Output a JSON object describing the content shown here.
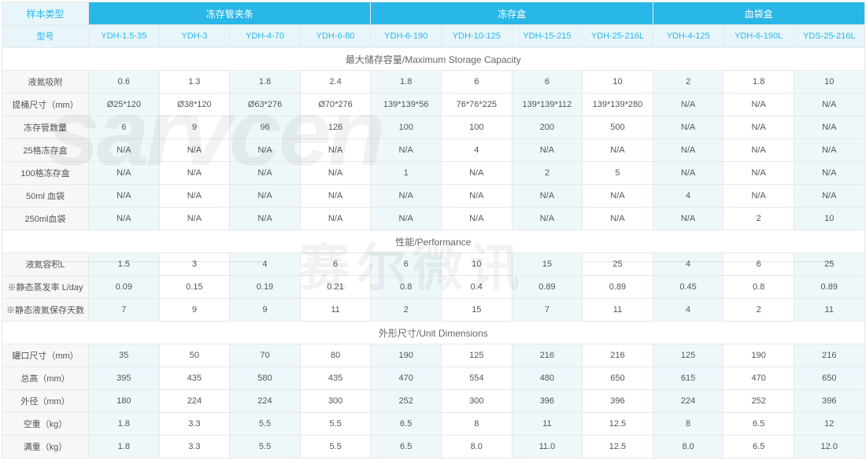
{
  "groups": [
    {
      "label": "样本类型",
      "span": 1
    },
    {
      "label": "冻存管夹条",
      "span": 4
    },
    {
      "label": "冻存盒",
      "span": 4
    },
    {
      "label": "血袋盒",
      "span": 3
    }
  ],
  "model_header_label": "型号",
  "models": [
    "YDH-1.5-35",
    "YDH-3",
    "YDH-4-70",
    "YDH-6-80",
    "YDH-6-190",
    "YDH-10-125",
    "YDH-15-215",
    "YDH-25-216L",
    "YDH-4-125",
    "YDH-6-190L",
    "YDS-25-216L"
  ],
  "shade_flags": [
    1,
    0,
    1,
    0,
    1,
    0,
    1,
    0,
    1,
    0,
    1
  ],
  "sections": [
    {
      "title": "最大储存容量/Maximum Storage Capacity",
      "rows": [
        {
          "label": "液氮吸附",
          "vals": [
            "0.6",
            "1.3",
            "1.8",
            "2.4",
            "1.8",
            "6",
            "6",
            "10",
            "2",
            "1.8",
            "10"
          ]
        },
        {
          "label": "提桶尺寸（mm）",
          "vals": [
            "Ø25*120",
            "Ø38*120",
            "Ø63*276",
            "Ø70*276",
            "139*139*56",
            "76*76*225",
            "139*139*112",
            "139*139*280",
            "N/A",
            "N/A",
            "N/A"
          ]
        },
        {
          "label": "冻存管数量",
          "vals": [
            "6",
            "9",
            "96",
            "126",
            "100",
            "100",
            "200",
            "500",
            "N/A",
            "N/A",
            "N/A"
          ]
        },
        {
          "label": "25格冻存盒",
          "vals": [
            "N/A",
            "N/A",
            "N/A",
            "N/A",
            "N/A",
            "4",
            "N/A",
            "N/A",
            "N/A",
            "N/A",
            "N/A"
          ]
        },
        {
          "label": "100格冻存盒",
          "vals": [
            "N/A",
            "N/A",
            "N/A",
            "N/A",
            "1",
            "N/A",
            "2",
            "5",
            "N/A",
            "N/A",
            "N/A"
          ]
        },
        {
          "label": "50ml 血袋",
          "vals": [
            "N/A",
            "N/A",
            "N/A",
            "N/A",
            "N/A",
            "N/A",
            "N/A",
            "N/A",
            "4",
            "N/A",
            "N/A"
          ]
        },
        {
          "label": "250ml血袋",
          "vals": [
            "N/A",
            "N/A",
            "N/A",
            "N/A",
            "N/A",
            "N/A",
            "N/A",
            "N/A",
            "N/A",
            "2",
            "10"
          ]
        }
      ]
    },
    {
      "title": "性能/Performance",
      "rows": [
        {
          "label": "液氮容积L",
          "vals": [
            "1.5",
            "3",
            "4",
            "6",
            "6",
            "10",
            "15",
            "25",
            "4",
            "6",
            "25"
          ]
        },
        {
          "label": "※静态蒸发率 L/day",
          "vals": [
            "0.09",
            "0.15",
            "0.19",
            "0.21",
            "0.8",
            "0.4",
            "0.89",
            "0.89",
            "0.45",
            "0.8",
            "0.89"
          ]
        },
        {
          "label": "※静态液氮保存天数",
          "vals": [
            "7",
            "9",
            "9",
            "11",
            "2",
            "15",
            "7",
            "11",
            "4",
            "2",
            "11"
          ]
        }
      ]
    },
    {
      "title": "外形尺寸/Unit Dimensions",
      "rows": [
        {
          "label": "罐口尺寸（mm）",
          "vals": [
            "35",
            "50",
            "70",
            "80",
            "190",
            "125",
            "216",
            "216",
            "125",
            "190",
            "216"
          ]
        },
        {
          "label": "总高（mm）",
          "vals": [
            "395",
            "435",
            "580",
            "435",
            "470",
            "554",
            "480",
            "650",
            "615",
            "470",
            "650"
          ]
        },
        {
          "label": "外径（mm）",
          "vals": [
            "180",
            "224",
            "224",
            "300",
            "252",
            "300",
            "396",
            "396",
            "224",
            "252",
            "396"
          ]
        },
        {
          "label": "空重（kg）",
          "vals": [
            "1.8",
            "3.3",
            "5.5",
            "5.5",
            "6.5",
            "8",
            "11",
            "12.5",
            "8",
            "6.5",
            "12"
          ]
        },
        {
          "label": "满重（kg）",
          "vals": [
            "1.8",
            "3.3",
            "5.5",
            "5.5",
            "6.5",
            "8.0",
            "11.0",
            "12.5",
            "8.0",
            "6.5",
            "12.0"
          ]
        }
      ]
    }
  ],
  "watermarks": {
    "wm1": "sarvcen",
    "wm2": "赛尔微讯"
  }
}
